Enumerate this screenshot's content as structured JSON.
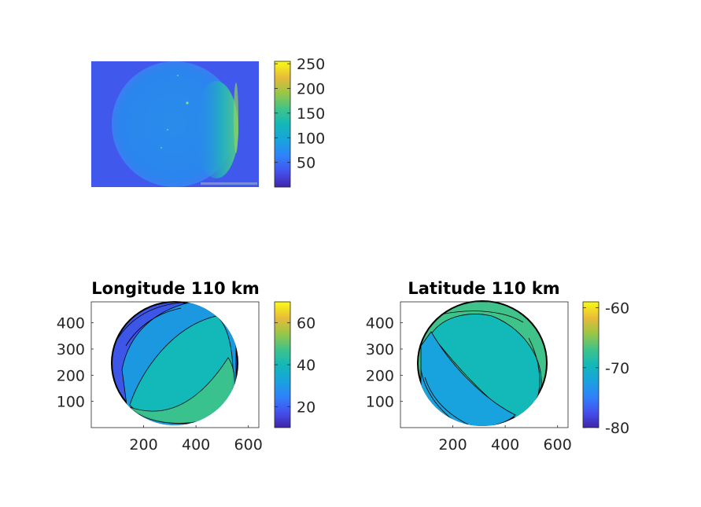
{
  "chart_data": [
    {
      "type": "heatmap",
      "title": "",
      "xlabel": "",
      "ylabel": "",
      "axes_visible": false,
      "colormap": "parula",
      "colorbar": {
        "range": [
          0,
          255
        ],
        "ticks": [
          50,
          100,
          150,
          200,
          250
        ]
      },
      "description_values": {
        "background_level": 40,
        "disk_level": 90,
        "limb_bright_level": 135
      }
    },
    {
      "type": "heatmap",
      "title": "Longitude 110 km",
      "xlabel": "",
      "ylabel": "",
      "xlim": [
        0,
        640
      ],
      "ylim": [
        0,
        480
      ],
      "xticks": [
        200,
        400,
        600
      ],
      "yticks": [
        100,
        200,
        300,
        400
      ],
      "colormap": "parula",
      "colorbar": {
        "range": [
          10,
          70
        ],
        "ticks": [
          20,
          40,
          60
        ]
      },
      "contour_levels": [
        20,
        30,
        40,
        50,
        60
      ]
    },
    {
      "type": "heatmap",
      "title": "Latitude 110 km",
      "xlabel": "",
      "ylabel": "",
      "xlim": [
        0,
        640
      ],
      "ylim": [
        0,
        480
      ],
      "xticks": [
        200,
        400,
        600
      ],
      "yticks": [
        100,
        200,
        300,
        400
      ],
      "colormap": "parula",
      "colorbar": {
        "range": [
          -80,
          -59
        ],
        "ticks": [
          -60,
          -70,
          -80
        ]
      },
      "contour_levels": [
        -75,
        -70,
        -65,
        -60
      ]
    }
  ]
}
